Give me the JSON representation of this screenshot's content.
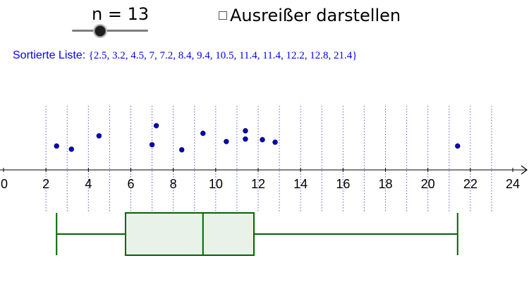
{
  "slider": {
    "label": "n = 13",
    "value": 13
  },
  "checkbox": {
    "label": "Ausreißer darstellen",
    "checked": false
  },
  "sorted_list": {
    "label": "Sortierte Liste:",
    "values_text": "{2.5, 3.2, 4.5, 7, 7.2, 8.4, 9.4, 10.5, 11.4, 11.4, 12.2, 12.8, 21.4}"
  },
  "colors": {
    "point": "#0000cc",
    "grid": "#3333cc",
    "box_stroke": "#006600",
    "box_fill": "#e8f2e8",
    "text_blue": "#0000ff"
  },
  "chart_data": {
    "type": "scatter",
    "xlim": [
      0,
      24
    ],
    "ticks": [
      0,
      2,
      4,
      6,
      8,
      10,
      12,
      14,
      16,
      18,
      20,
      22,
      24
    ],
    "grid_x": [
      2,
      3,
      4,
      5,
      6,
      7,
      8,
      9,
      10,
      11,
      12,
      13,
      14,
      15,
      16,
      17,
      18,
      19,
      20,
      21,
      22,
      23
    ],
    "points": [
      {
        "x": 2.5,
        "y": 0.21
      },
      {
        "x": 3.2,
        "y": 0.16
      },
      {
        "x": 4.5,
        "y": 0.37
      },
      {
        "x": 7.0,
        "y": 0.23
      },
      {
        "x": 7.2,
        "y": 0.53
      },
      {
        "x": 8.4,
        "y": 0.15
      },
      {
        "x": 9.4,
        "y": 0.41
      },
      {
        "x": 10.5,
        "y": 0.28
      },
      {
        "x": 11.4,
        "y": 0.32
      },
      {
        "x": 11.4,
        "y": 0.45
      },
      {
        "x": 12.2,
        "y": 0.31
      },
      {
        "x": 12.8,
        "y": 0.27
      },
      {
        "x": 21.4,
        "y": 0.21
      }
    ],
    "boxplot": {
      "min": 2.5,
      "q1": 5.75,
      "median": 9.4,
      "q3": 11.8,
      "max": 21.4
    }
  }
}
